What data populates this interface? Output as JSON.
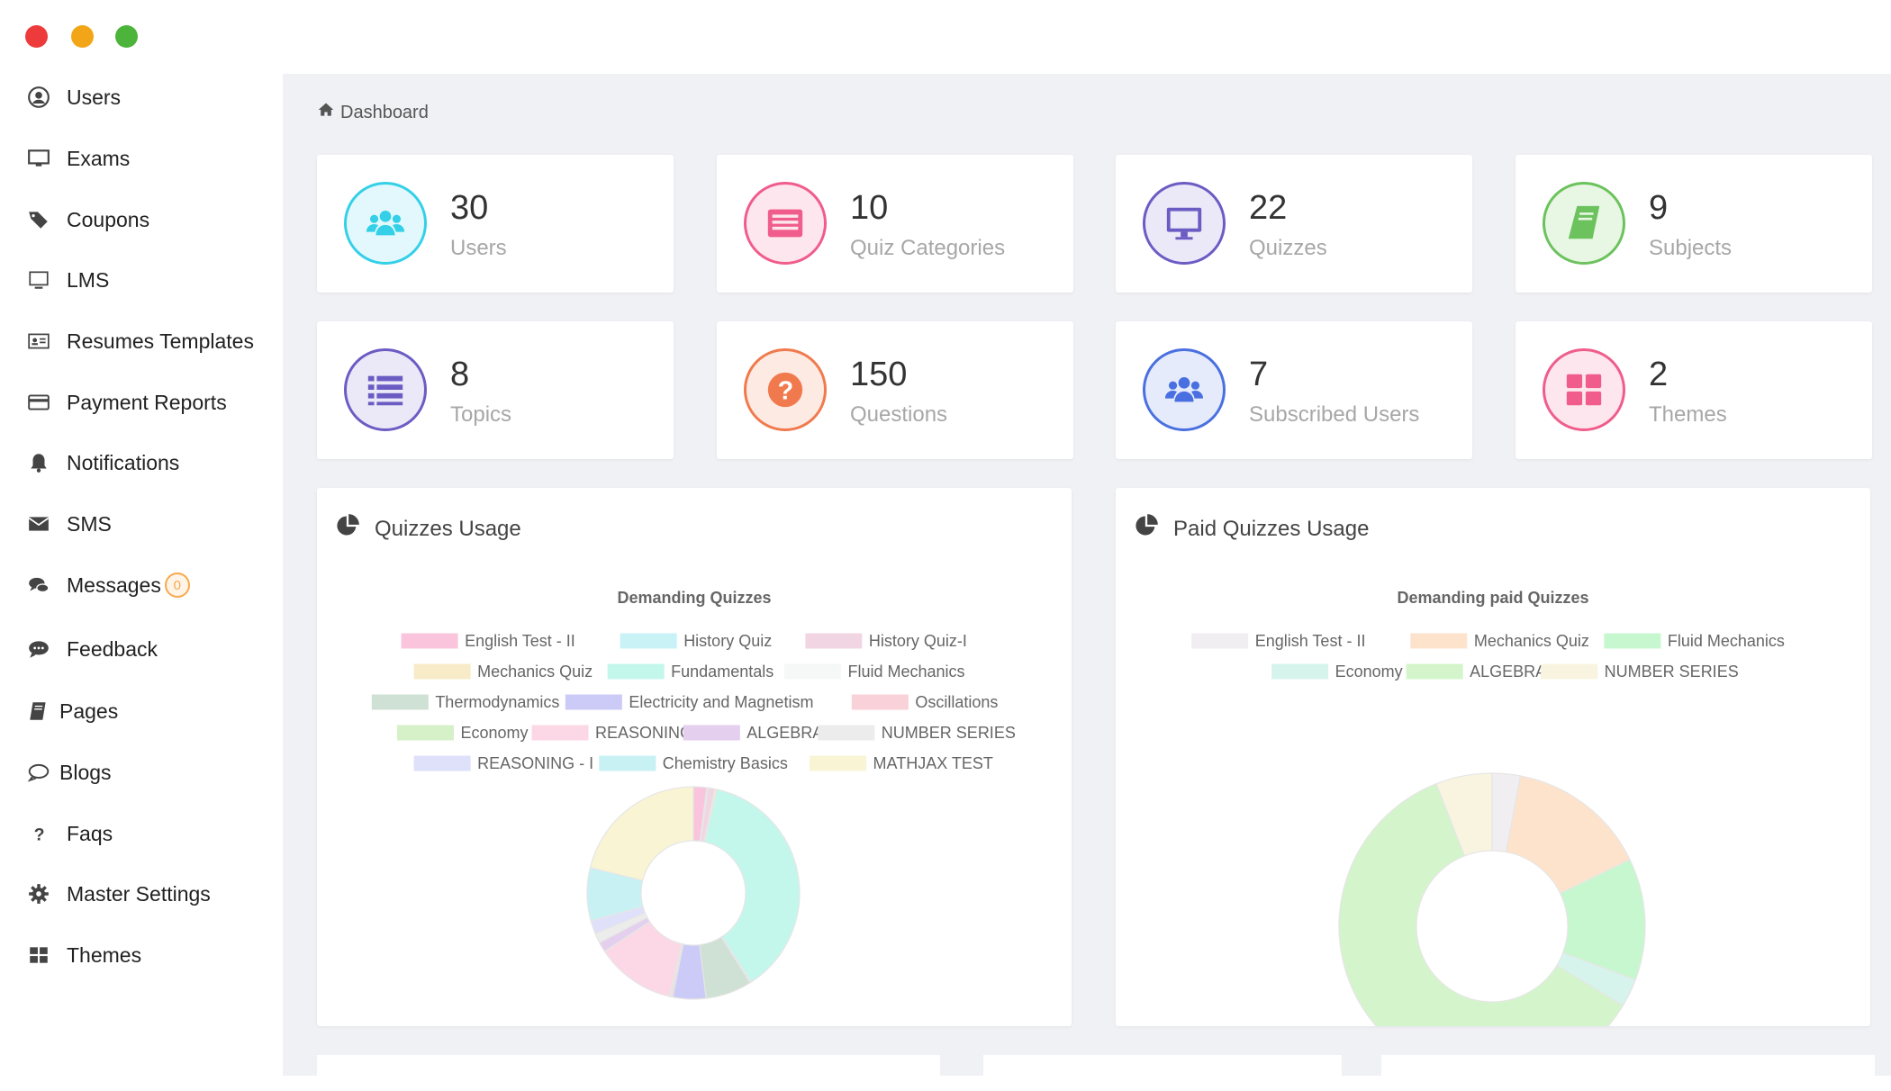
{
  "window": {
    "controls": [
      "close",
      "minimize",
      "maximize"
    ]
  },
  "sidebar": {
    "items": [
      {
        "label": "Users",
        "icon": "user-circle-icon"
      },
      {
        "label": "Exams",
        "icon": "desktop-icon"
      },
      {
        "label": "Coupons",
        "icon": "tags-icon"
      },
      {
        "label": "LMS",
        "icon": "monitor-icon"
      },
      {
        "label": "Resumes Templates",
        "icon": "id-card-icon"
      },
      {
        "label": "Payment Reports",
        "icon": "credit-card-icon"
      },
      {
        "label": "Notifications",
        "icon": "bell-icon"
      },
      {
        "label": "SMS",
        "icon": "envelope-icon"
      },
      {
        "label": "Messages",
        "icon": "comments-icon",
        "badge": "0"
      },
      {
        "label": "Feedback",
        "icon": "comment-dots-icon"
      },
      {
        "label": "Pages",
        "icon": "book-icon"
      },
      {
        "label": "Blogs",
        "icon": "comment-outline-icon"
      },
      {
        "label": "Faqs",
        "icon": "question-icon"
      },
      {
        "label": "Master Settings",
        "icon": "gear-icon"
      },
      {
        "label": "Themes",
        "icon": "th-large-icon"
      }
    ]
  },
  "breadcrumb": {
    "label": "Dashboard",
    "icon": "home-icon"
  },
  "stats": [
    {
      "value": "30",
      "label": "Users",
      "icon": "users-icon",
      "color": "#34d0e8",
      "bg": "#e3f8fc"
    },
    {
      "value": "10",
      "label": "Quiz Categories",
      "icon": "list-alt-icon",
      "color": "#f05c8b",
      "bg": "#fde6ee"
    },
    {
      "value": "22",
      "label": "Quizzes",
      "icon": "desktop-icon",
      "color": "#6b5cc4",
      "bg": "#ebe8f7"
    },
    {
      "value": "9",
      "label": "Subjects",
      "icon": "book-icon",
      "color": "#6cc25d",
      "bg": "#e8f6e4"
    },
    {
      "value": "8",
      "label": "Topics",
      "icon": "list-icon",
      "color": "#6b5cc4",
      "bg": "#ebe8f7"
    },
    {
      "value": "150",
      "label": "Questions",
      "icon": "question-circle-icon",
      "color": "#f07a4e",
      "bg": "#fdeae3"
    },
    {
      "value": "7",
      "label": "Subscribed Users",
      "icon": "users-icon",
      "color": "#4a6fe0",
      "bg": "#e5ebfb"
    },
    {
      "value": "2",
      "label": "Themes",
      "icon": "th-large-icon",
      "color": "#f05c8b",
      "bg": "#fde6ee"
    }
  ],
  "panels": {
    "quizzes_usage": {
      "title": "Quizzes Usage",
      "icon": "pie-chart-icon"
    },
    "paid_quizzes_usage": {
      "title": "Paid Quizzes Usage",
      "icon": "pie-chart-icon"
    }
  },
  "chart_data": [
    {
      "type": "pie",
      "title": "Demanding Quizzes",
      "legend_position": "top",
      "categories": [
        "English Test - II",
        "History  Quiz",
        "History Quiz-I",
        "Mechanics Quiz",
        "Fundamentals",
        "Fluid Mechanics",
        "Thermodynamics",
        "Electricity and Magnetism",
        "Oscillations",
        "Economy",
        "REASONING",
        "ALGEBRA",
        "NUMBER SERIES",
        "REASONING - I",
        "Chemistry Basics",
        "MATHJAX TEST"
      ],
      "values": [
        2,
        0.2,
        1,
        0.3,
        37,
        0.2,
        7,
        5,
        0.3,
        0.2,
        12,
        1.5,
        1.5,
        2,
        8,
        21
      ],
      "colors": [
        "#f9c4dc",
        "#c9f2f7",
        "#f2d5e2",
        "#f7ebc8",
        "#c4f7ec",
        "#f5f8f6",
        "#cfe0d4",
        "#cccbf7",
        "#f8d2d8",
        "#d6f0c8",
        "#fcd8e6",
        "#e4cfee",
        "#ececec",
        "#dfe0f9",
        "#c8f1f4",
        "#f8f4d4"
      ]
    },
    {
      "type": "pie",
      "title": "Demanding paid Quizzes",
      "legend_position": "top",
      "categories": [
        "English Test - II",
        "Mechanics Quiz",
        "Fluid Mechanics",
        "Economy",
        "ALGEBRA",
        "NUMBER SERIES"
      ],
      "values": [
        3,
        15,
        13,
        3,
        61,
        6
      ],
      "colors": [
        "#f0eef1",
        "#fde3cc",
        "#c7f7cf",
        "#d6f3ec",
        "#d4f4cb",
        "#f8f4e0"
      ]
    }
  ]
}
